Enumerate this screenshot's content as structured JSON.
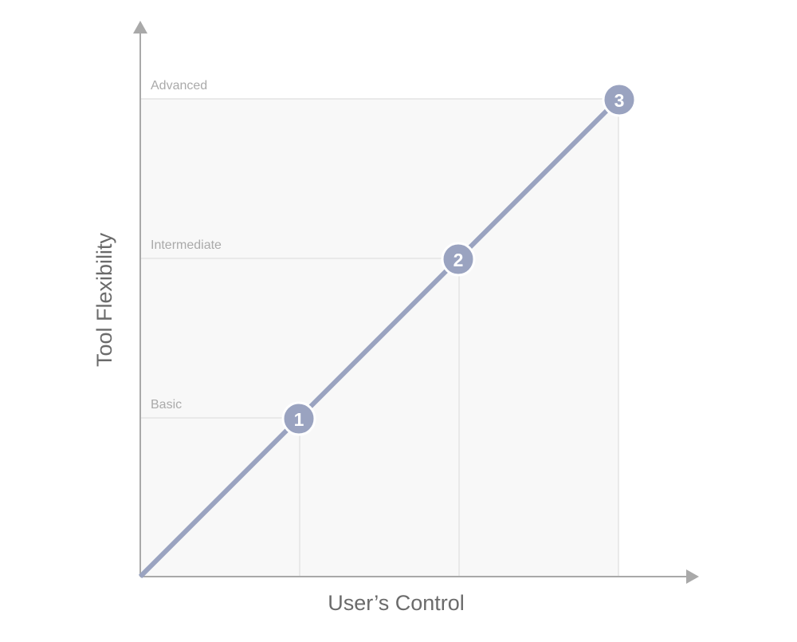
{
  "axes": {
    "x_label": "User’s Control",
    "y_label": "Tool Flexibility"
  },
  "levels": [
    "Basic",
    "Intermediate",
    "Advanced"
  ],
  "points": [
    "1",
    "2",
    "3"
  ]
}
